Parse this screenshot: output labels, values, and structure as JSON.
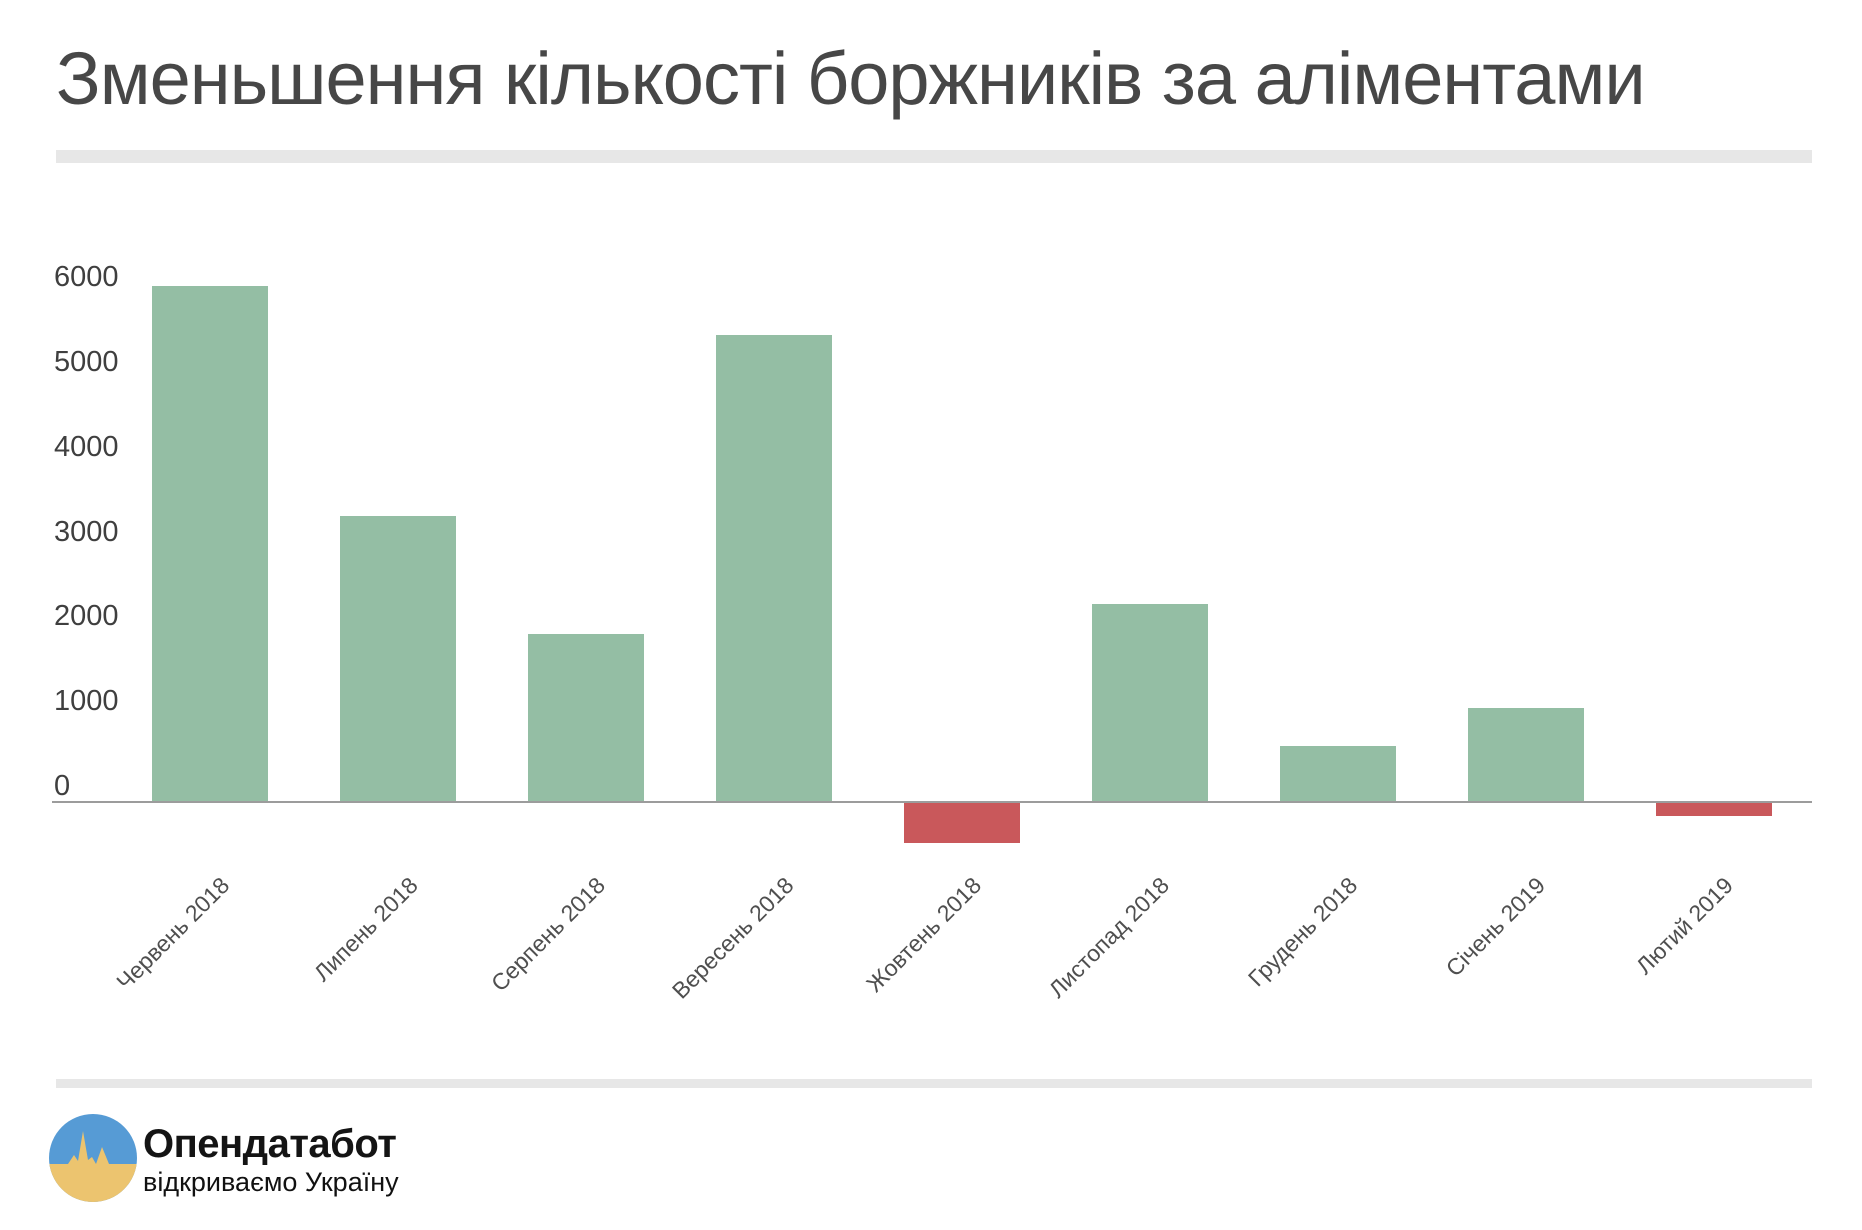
{
  "title": "Зменьшення кількості боржників за аліментами",
  "chart_data": {
    "type": "bar",
    "title": "Зменьшення кількості боржників за аліментами",
    "categories": [
      "Червень 2018",
      "Липень 2018",
      "Серпень 2018",
      "Вересень 2018",
      "Жовтень 2018",
      "Листопад 2018",
      "Грудень 2018",
      "Січень 2019",
      "Лютий 2019"
    ],
    "values": [
      6070,
      3360,
      1970,
      5500,
      -470,
      2320,
      650,
      1100,
      -150
    ],
    "xlabel": "",
    "ylabel": "",
    "yticks": [
      0,
      1000,
      2000,
      3000,
      4000,
      5000,
      6000
    ],
    "ylim": [
      -700,
      6700
    ],
    "grid": "off",
    "legend": "none",
    "positive_color": "#94bea4",
    "negative_color": "#c9585b",
    "axis_color": "#9c9c9c"
  },
  "footer": {
    "logo_title": "Опендатабот",
    "logo_subtitle": "відкриваємо Україну",
    "logo_colors": {
      "blue": "#569bd5",
      "yellow": "#ecc46f"
    }
  }
}
